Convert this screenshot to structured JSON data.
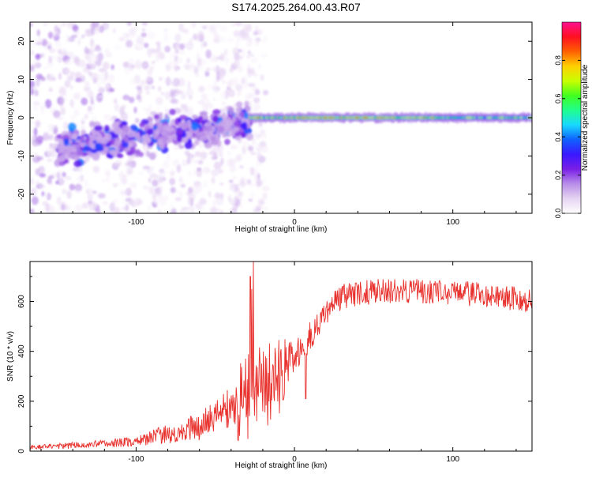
{
  "title": "S174.2025.264.00.43.R07",
  "colors": {
    "snr_line": "#e8302c",
    "axis": "#000000",
    "colormap": [
      "#ffffff",
      "#e6d4f2",
      "#b88ee8",
      "#7a1fe6",
      "#3a18ff",
      "#1060ff",
      "#18d8ff",
      "#20ff90",
      "#40ff20",
      "#c8ff00",
      "#ffd000",
      "#ff6000",
      "#ff1020",
      "#ff1090"
    ]
  },
  "chart_data": [
    {
      "type": "heatmap",
      "title": "S174.2025.264.00.43.R07",
      "xlabel": "Height of straight line (km)",
      "ylabel": "Frequency (Hz)",
      "xlim": [
        -167,
        150
      ],
      "ylim": [
        -25,
        25
      ],
      "xticks": [
        -100,
        0,
        100
      ],
      "xtick_labels": [
        "-100",
        "0",
        "100"
      ],
      "yticks": [
        -20,
        -10,
        0,
        10,
        20
      ],
      "ytick_labels": [
        "-20",
        "-10",
        "0",
        "10",
        "20"
      ],
      "colorbar": {
        "label": "Normalized spectral amplitude",
        "range": [
          0,
          1
        ],
        "ticks": [
          0,
          0.2,
          0.4,
          0.6,
          0.8
        ],
        "tick_labels": [
          "0.0",
          "0.2",
          "0.4",
          "0.6",
          "0.8"
        ]
      },
      "description_points": {
        "diffuse_noise_region_km": [
          -167,
          -28
        ],
        "trend_segment": {
          "x": [
            -150,
            -28
          ],
          "frequency_hz": [
            -8,
            -1
          ],
          "spread_hz": 6
        },
        "steady_line": {
          "x": [
            -28,
            150
          ],
          "frequency_hz": 0,
          "peak_amplitude": 0.95
        }
      }
    },
    {
      "type": "line",
      "xlabel": "Height of straight line (km)",
      "ylabel": "SNR (10 * v/v)",
      "xlim": [
        -167,
        150
      ],
      "ylim": [
        0,
        760
      ],
      "xticks": [
        -100,
        0,
        100
      ],
      "xtick_labels": [
        "-100",
        "0",
        "100"
      ],
      "yticks": [
        0,
        200,
        400,
        600
      ],
      "ytick_labels": [
        "0",
        "200",
        "400",
        "600"
      ],
      "trend": {
        "x": [
          -167,
          -130,
          -100,
          -80,
          -60,
          -45,
          -35,
          -25,
          -15,
          -5,
          0,
          10,
          20,
          30,
          50,
          80,
          110,
          130,
          150
        ],
        "value": [
          15,
          25,
          40,
          70,
          100,
          150,
          230,
          280,
          310,
          330,
          380,
          460,
          560,
          620,
          640,
          640,
          630,
          620,
          600
        ],
        "noise": [
          8,
          15,
          20,
          40,
          60,
          80,
          120,
          160,
          140,
          120,
          80,
          60,
          50,
          50,
          50,
          50,
          50,
          50,
          50
        ]
      },
      "peaks": [
        {
          "x": -26,
          "value": 760
        },
        {
          "x": -27,
          "value": 650
        },
        {
          "x": -28,
          "value": 700
        },
        {
          "x": 7,
          "value": 210
        }
      ]
    }
  ]
}
